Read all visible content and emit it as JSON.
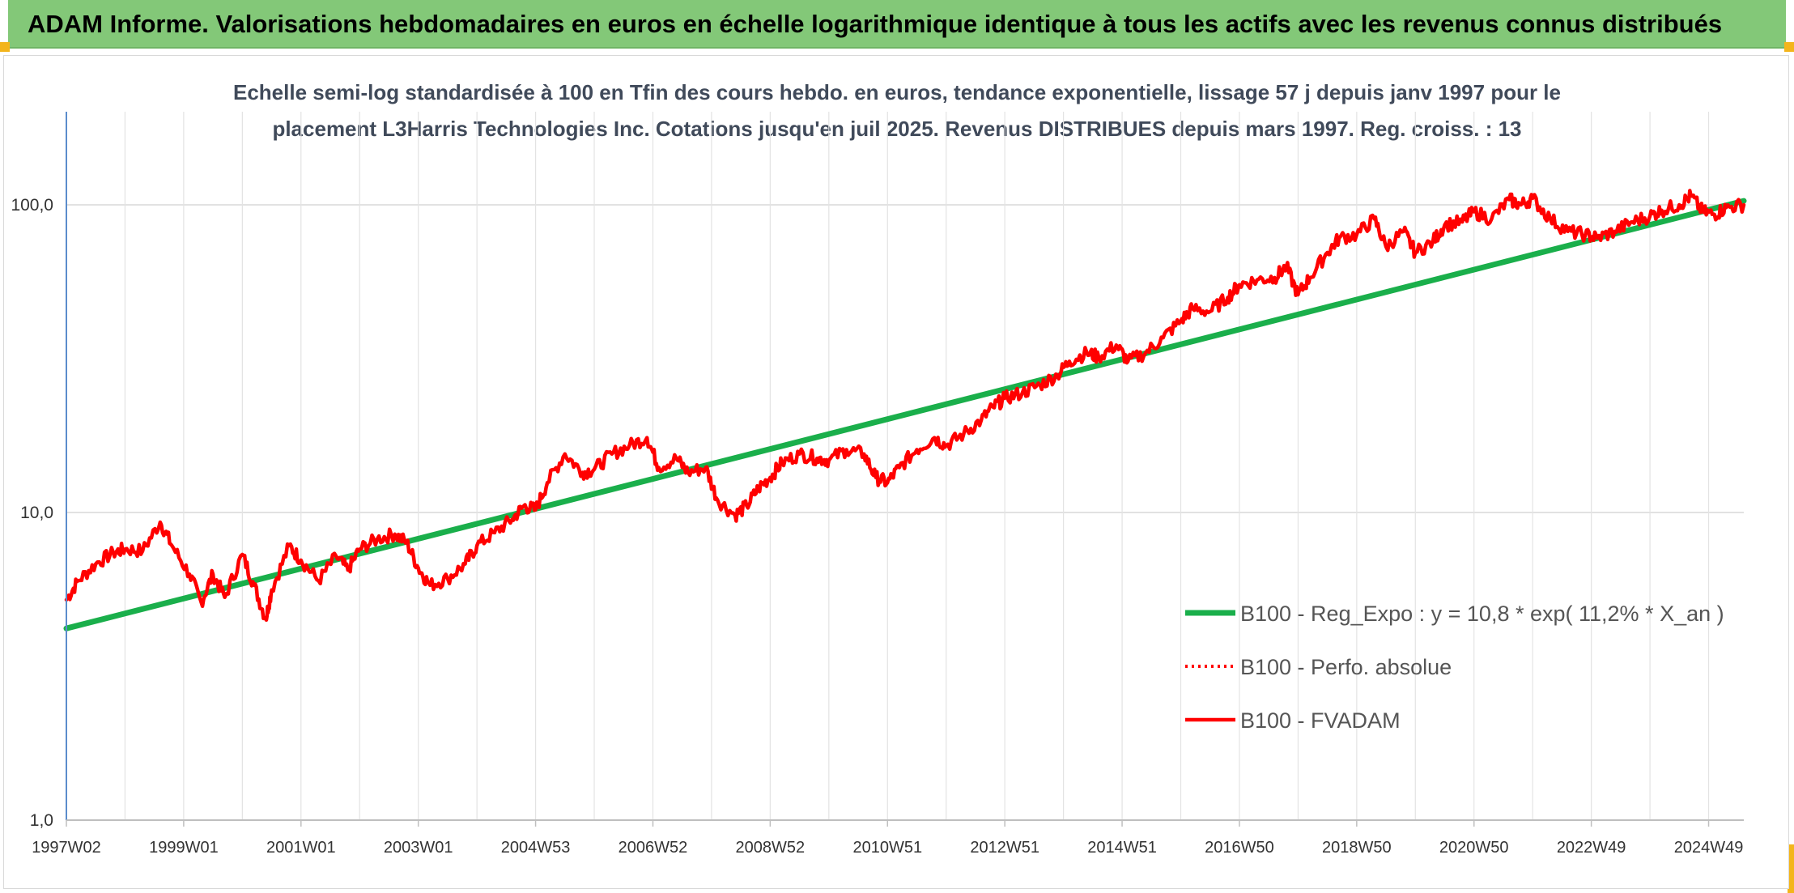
{
  "header": {
    "title": "ADAM Informe. Valorisations hebdomadaires en euros en échelle logarithmique identique à tous les actifs avec les revenus connus distribués"
  },
  "chart_data": {
    "type": "line",
    "subtitle_lines": [
      "Echelle semi-log standardisée à 100 en Tfin des cours hebdo. en euros, tendance exponentielle, lissage 57 j depuis janv 1997 pour le",
      "placement L3Harris Technologies Inc. Cotations jusqu'en juil 2025. Revenus DISTRIBUES depuis mars 1997. Reg. croiss. : 13"
    ],
    "yscale": "log",
    "ylim": [
      1,
      180
    ],
    "xlim": [
      1997.0,
      2025.6
    ],
    "y_ticks": [
      {
        "value": 1,
        "label": "1,0"
      },
      {
        "value": 10,
        "label": "10,0"
      },
      {
        "value": 100,
        "label": "100,0"
      }
    ],
    "x_ticks": [
      {
        "value": 1997.0,
        "label": "1997W02"
      },
      {
        "value": 1999.0,
        "label": "1999W01"
      },
      {
        "value": 2001.0,
        "label": "2001W01"
      },
      {
        "value": 2003.0,
        "label": "2003W01"
      },
      {
        "value": 2005.0,
        "label": "2004W53"
      },
      {
        "value": 2007.0,
        "label": "2006W52"
      },
      {
        "value": 2009.0,
        "label": "2008W52"
      },
      {
        "value": 2011.0,
        "label": "2010W51"
      },
      {
        "value": 2013.0,
        "label": "2012W51"
      },
      {
        "value": 2015.0,
        "label": "2014W51"
      },
      {
        "value": 2017.0,
        "label": "2016W50"
      },
      {
        "value": 2019.0,
        "label": "2018W50"
      },
      {
        "value": 2021.0,
        "label": "2020W50"
      },
      {
        "value": 2023.0,
        "label": "2022W49"
      },
      {
        "value": 2025.0,
        "label": "2024W49"
      }
    ],
    "grid": true,
    "legend_position": "lower-right",
    "series": [
      {
        "name": "B100 - Reg_Expo : y = 10,8 * exp( 11,2% *  X_an )",
        "color": "#1aaf4b",
        "style": "solid-thick",
        "x": [
          1997.0,
          2025.6
        ],
        "values": [
          4.2,
          103
        ]
      },
      {
        "name": "B100 - Perfo. absolue",
        "color": "#ff0000",
        "style": "dotted",
        "x": [],
        "values": []
      },
      {
        "name": "B100 - FVADAM",
        "color": "#ff0000",
        "style": "solid",
        "x": [
          1997.0,
          1997.2,
          1997.5,
          1997.8,
          1998.0,
          1998.3,
          1998.6,
          1998.8,
          1999.1,
          1999.3,
          1999.5,
          1999.7,
          2000.0,
          2000.2,
          2000.4,
          2000.5,
          2000.8,
          2001.0,
          2001.3,
          2001.6,
          2001.8,
          2002.0,
          2002.3,
          2002.6,
          2002.8,
          2003.0,
          2003.2,
          2003.5,
          2003.8,
          2004.0,
          2004.3,
          2004.6,
          2004.8,
          2005.0,
          2005.2,
          2005.5,
          2005.8,
          2006.0,
          2006.3,
          2006.6,
          2006.9,
          2007.1,
          2007.4,
          2007.6,
          2007.9,
          2008.1,
          2008.4,
          2008.6,
          2008.8,
          2009.0,
          2009.2,
          2009.5,
          2009.8,
          2010.0,
          2010.3,
          2010.6,
          2010.8,
          2011.0,
          2011.2,
          2011.5,
          2011.8,
          2012.0,
          2012.3,
          2012.6,
          2012.8,
          2013.0,
          2013.3,
          2013.6,
          2013.9,
          2014.1,
          2014.4,
          2014.6,
          2014.9,
          2015.1,
          2015.4,
          2015.7,
          2016.0,
          2016.2,
          2016.5,
          2016.8,
          2017.0,
          2017.3,
          2017.6,
          2017.8,
          2018.0,
          2018.2,
          2018.5,
          2018.7,
          2019.0,
          2019.3,
          2019.5,
          2019.8,
          2020.0,
          2020.3,
          2020.5,
          2020.8,
          2021.0,
          2021.3,
          2021.6,
          2021.8,
          2022.0,
          2022.3,
          2022.6,
          2022.9,
          2023.1,
          2023.4,
          2023.7,
          2024.0,
          2024.2,
          2024.5,
          2024.7,
          2024.9,
          2025.1,
          2025.3,
          2025.6
        ],
        "values": [
          5.2,
          6.0,
          6.8,
          7.4,
          7.6,
          7.5,
          9.3,
          7.8,
          6.3,
          5.1,
          6.3,
          5.3,
          7.3,
          5.8,
          4.5,
          5.6,
          7.8,
          7.0,
          6.0,
          7.2,
          6.5,
          7.6,
          8.2,
          8.5,
          8.0,
          6.6,
          5.8,
          6.1,
          6.8,
          7.8,
          8.6,
          9.5,
          10.5,
          10.2,
          12.5,
          15.5,
          13.5,
          13.8,
          15.5,
          16.5,
          17.5,
          14.0,
          15.0,
          13.5,
          14.0,
          11.0,
          9.8,
          10.5,
          12.0,
          13.0,
          14.5,
          15.5,
          15.0,
          14.8,
          16.0,
          15.5,
          13.0,
          12.5,
          14.0,
          16.0,
          17.5,
          16.5,
          18.0,
          20.0,
          22.0,
          23.5,
          24.5,
          26.0,
          28.0,
          31.0,
          33.0,
          32.0,
          35.0,
          31.0,
          33.0,
          37.0,
          42.0,
          46.0,
          45.0,
          50.0,
          55.0,
          57.0,
          58.0,
          63.0,
          51.0,
          58.0,
          70.0,
          78.0,
          80.0,
          90.0,
          73.0,
          82.0,
          70.0,
          76.0,
          86.0,
          88.0,
          95.0,
          90.0,
          104.0,
          100.0,
          105.0,
          90.0,
          82.0,
          80.0,
          78.0,
          82.0,
          88.0,
          92.0,
          96.0,
          100.0,
          107.0,
          95.0,
          93.0,
          98.0,
          100.0
        ]
      }
    ]
  }
}
